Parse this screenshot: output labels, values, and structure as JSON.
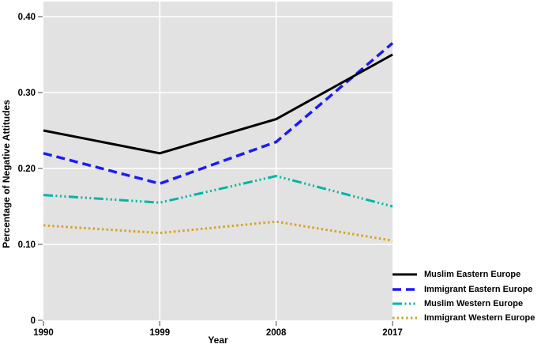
{
  "chart_data": {
    "type": "line",
    "x": [
      1990,
      1999,
      2008,
      2017
    ],
    "xlabel": "Year",
    "ylabel": "Percentage of Negative Attitudes",
    "xlim": [
      1990,
      2017
    ],
    "ylim": [
      0,
      0.4
    ],
    "x_ticks": {
      "values": [
        1990,
        1999,
        2008,
        2017
      ],
      "labels": [
        "1990",
        "1999",
        "2008",
        "2017"
      ]
    },
    "y_ticks": {
      "values": [
        0,
        0.1,
        0.2,
        0.3,
        0.4
      ],
      "labels": [
        "0",
        "0.10",
        "0.20",
        "0.30",
        "0.40"
      ]
    },
    "grid": true,
    "plot_bg_color": "#e2e2e2",
    "grid_color": "#ffffff",
    "tick_color": "#606060",
    "legend_position": "bottom-right-outside",
    "series": [
      {
        "name": "Muslim Eastern Europe",
        "color": "#000000",
        "style": "solid",
        "width": 3,
        "values": [
          0.25,
          0.22,
          0.265,
          0.35
        ]
      },
      {
        "name": "Immigrant Eastern Europe",
        "color": "#1a1aff",
        "style": "dash",
        "width": 3.5,
        "values": [
          0.22,
          0.18,
          0.235,
          0.365
        ]
      },
      {
        "name": "Muslim Western Europe",
        "color": "#00b5a5",
        "style": "dash-dot-dot",
        "width": 3,
        "values": [
          0.165,
          0.155,
          0.19,
          0.15
        ]
      },
      {
        "name": "Immigrant Western Europe",
        "color": "#d9a41e",
        "style": "dot",
        "width": 3,
        "values": [
          0.125,
          0.115,
          0.13,
          0.105
        ]
      }
    ]
  }
}
